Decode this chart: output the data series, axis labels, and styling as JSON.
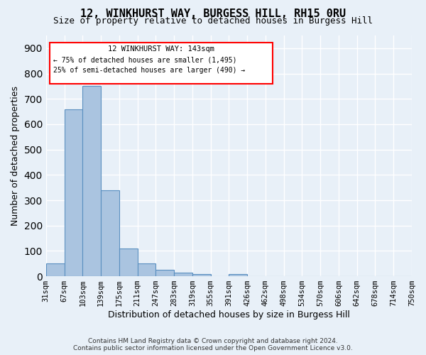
{
  "title": "12, WINKHURST WAY, BURGESS HILL, RH15 0RU",
  "subtitle": "Size of property relative to detached houses in Burgess Hill",
  "xlabel": "Distribution of detached houses by size in Burgess Hill",
  "ylabel": "Number of detached properties",
  "footer_line1": "Contains HM Land Registry data © Crown copyright and database right 2024.",
  "footer_line2": "Contains public sector information licensed under the Open Government Licence v3.0.",
  "bin_labels": [
    "31sqm",
    "67sqm",
    "103sqm",
    "139sqm",
    "175sqm",
    "211sqm",
    "247sqm",
    "283sqm",
    "319sqm",
    "355sqm",
    "391sqm",
    "426sqm",
    "462sqm",
    "498sqm",
    "534sqm",
    "570sqm",
    "606sqm",
    "642sqm",
    "678sqm",
    "714sqm",
    "750sqm"
  ],
  "bar_values": [
    50,
    660,
    750,
    340,
    110,
    50,
    25,
    15,
    10,
    0,
    8,
    0,
    0,
    0,
    0,
    0,
    0,
    0,
    0,
    0
  ],
  "bar_color": "#aac4e0",
  "bar_edge_color": "#5a8fc0",
  "ylim": [
    0,
    950
  ],
  "yticks": [
    0,
    100,
    200,
    300,
    400,
    500,
    600,
    700,
    800,
    900
  ],
  "annotation_title": "12 WINKHURST WAY: 143sqm",
  "annotation_line1": "← 75% of detached houses are smaller (1,495)",
  "annotation_line2": "25% of semi-detached houses are larger (490) →",
  "bg_color": "#e8f0f8",
  "grid_color": "#ffffff"
}
